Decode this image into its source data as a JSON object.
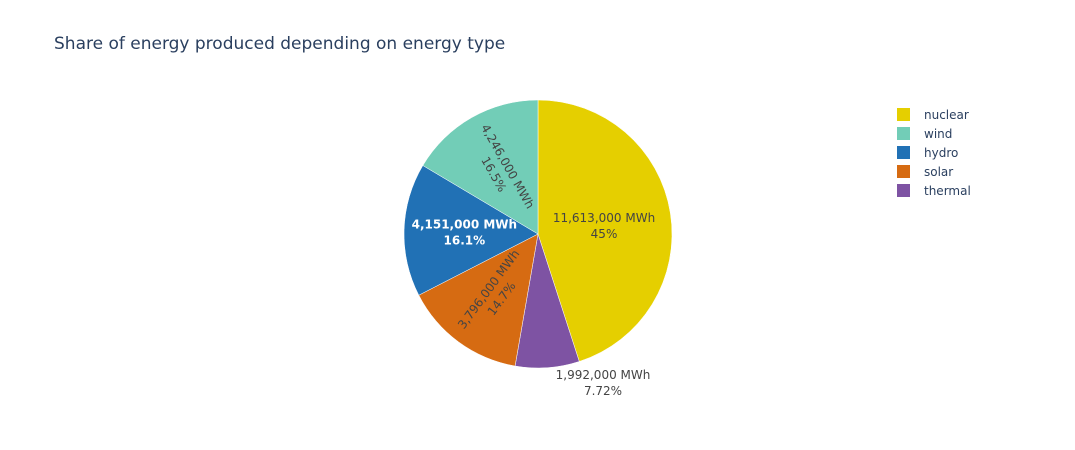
{
  "chart_data": {
    "type": "pie",
    "title": "Share of energy produced depending on energy type",
    "labels": [
      "nuclear",
      "wind",
      "hydro",
      "solar",
      "thermal"
    ],
    "values": [
      11613000,
      4246000,
      4151000,
      3796000,
      1992000
    ],
    "value_text": [
      "11,613,000 MWh",
      "4,246,000 MWh",
      "4,151,000 MWh",
      "3,796,000 MWh",
      "1,992,000 MWh"
    ],
    "percent_text": [
      "45%",
      "16.5%",
      "16.1%",
      "14.7%",
      "7.72%"
    ],
    "colors": [
      "#e5cf00",
      "#72cdb7",
      "#2171b5",
      "#d66b12",
      "#7e53a3"
    ],
    "label_colors": [
      "#444444",
      "#444444",
      "#ffffff",
      "#444444",
      "#444444"
    ],
    "legend_position": "top-right"
  }
}
